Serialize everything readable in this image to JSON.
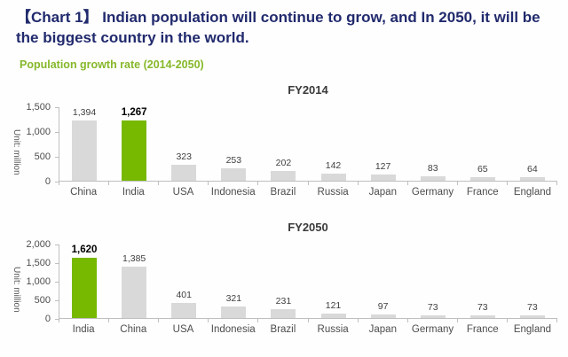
{
  "page": {
    "title": "【Chart 1】 Indian population will continue to grow, and In 2050, it will be the biggest country in the world.",
    "subtitle": "Population growth rate (2014-2050)"
  },
  "colors": {
    "title_navy": "#212a6d",
    "subtitle_green": "#86b82a",
    "bar_green": "#77b800",
    "bar_gray": "#d9d9d9",
    "chart_title": "#3a3a3a",
    "value_text": "#404040",
    "value_text_highlight": "#000000",
    "axis_text": "#595959",
    "axis_text2": "#4d4d4d",
    "axis_line": "#bfbfbf"
  },
  "chart_data": [
    {
      "type": "bar",
      "title": "FY2014",
      "unit_label": "Unit: million",
      "categories": [
        "China",
        "India",
        "USA",
        "Indonesia",
        "Brazil",
        "Russia",
        "Japan",
        "Germany",
        "France",
        "England"
      ],
      "values": [
        1394,
        1267,
        323,
        253,
        202,
        142,
        127,
        83,
        65,
        64
      ],
      "value_labels": [
        "1,394",
        "1,267",
        "323",
        "253",
        "202",
        "142",
        "127",
        "83",
        "65",
        "64"
      ],
      "highlight_index": 1,
      "highlight_category": "India",
      "ylim": [
        0,
        1500
      ],
      "ytick_step": 500,
      "ytick_labels": [
        "0",
        "500",
        "1,000",
        "1,500"
      ],
      "grid": false,
      "legend": "none"
    },
    {
      "type": "bar",
      "title": "FY2050",
      "unit_label": "Unit: million",
      "categories": [
        "India",
        "China",
        "USA",
        "Indonesia",
        "Brazil",
        "Russia",
        "Japan",
        "Germany",
        "France",
        "England"
      ],
      "values": [
        1620,
        1385,
        401,
        321,
        231,
        121,
        97,
        73,
        73,
        73
      ],
      "value_labels": [
        "1,620",
        "1,385",
        "401",
        "321",
        "231",
        "121",
        "97",
        "73",
        "73",
        "73"
      ],
      "highlight_index": 0,
      "highlight_category": "India",
      "ylim": [
        0,
        2000
      ],
      "ytick_step": 500,
      "ytick_labels": [
        "0",
        "500",
        "1,000",
        "1,500",
        "2,000"
      ],
      "grid": false,
      "legend": "none"
    }
  ]
}
